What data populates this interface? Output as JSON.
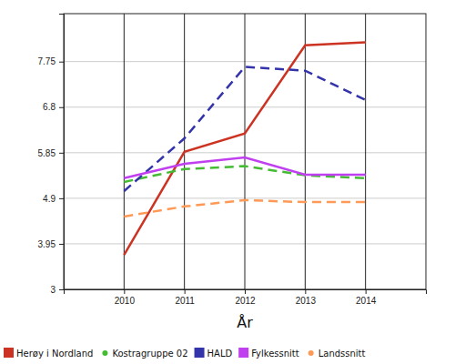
{
  "chart_data": {
    "type": "line",
    "x_label": "År",
    "x": [
      2010,
      2011,
      2012,
      2013,
      2014
    ],
    "xlim": [
      2009,
      2015
    ],
    "xticks": [
      2010,
      2011,
      2012,
      2013,
      2014
    ],
    "ylim": [
      3,
      8.75
    ],
    "yticks": [
      3,
      3.95,
      4.9,
      5.85,
      6.8,
      7.75
    ],
    "grid": true,
    "legend": "bottom",
    "series": [
      {
        "name": "Herøy i Nordland",
        "color": "#cc3322",
        "line_style": "solid",
        "marker": "square",
        "values": [
          3.72,
          5.87,
          6.25,
          8.09,
          8.15
        ]
      },
      {
        "name": "Kostragruppe 02",
        "color": "#44bb33",
        "line_style": "dashed",
        "marker": "circle",
        "values": [
          5.24,
          5.51,
          5.57,
          5.38,
          5.32
        ]
      },
      {
        "name": "HALD",
        "color": "#3333aa",
        "line_style": "dashed",
        "marker": "square",
        "values": [
          5.05,
          6.15,
          7.64,
          7.56,
          6.95
        ]
      },
      {
        "name": "Fylkessnitt",
        "color": "#c040f0",
        "line_style": "solid",
        "marker": "square",
        "values": [
          5.32,
          5.62,
          5.75,
          5.39,
          5.39
        ]
      },
      {
        "name": "Landssnitt",
        "color": "#ff9955",
        "line_style": "dashed",
        "marker": "circle",
        "values": [
          4.52,
          4.73,
          4.86,
          4.82,
          4.82
        ]
      }
    ]
  }
}
